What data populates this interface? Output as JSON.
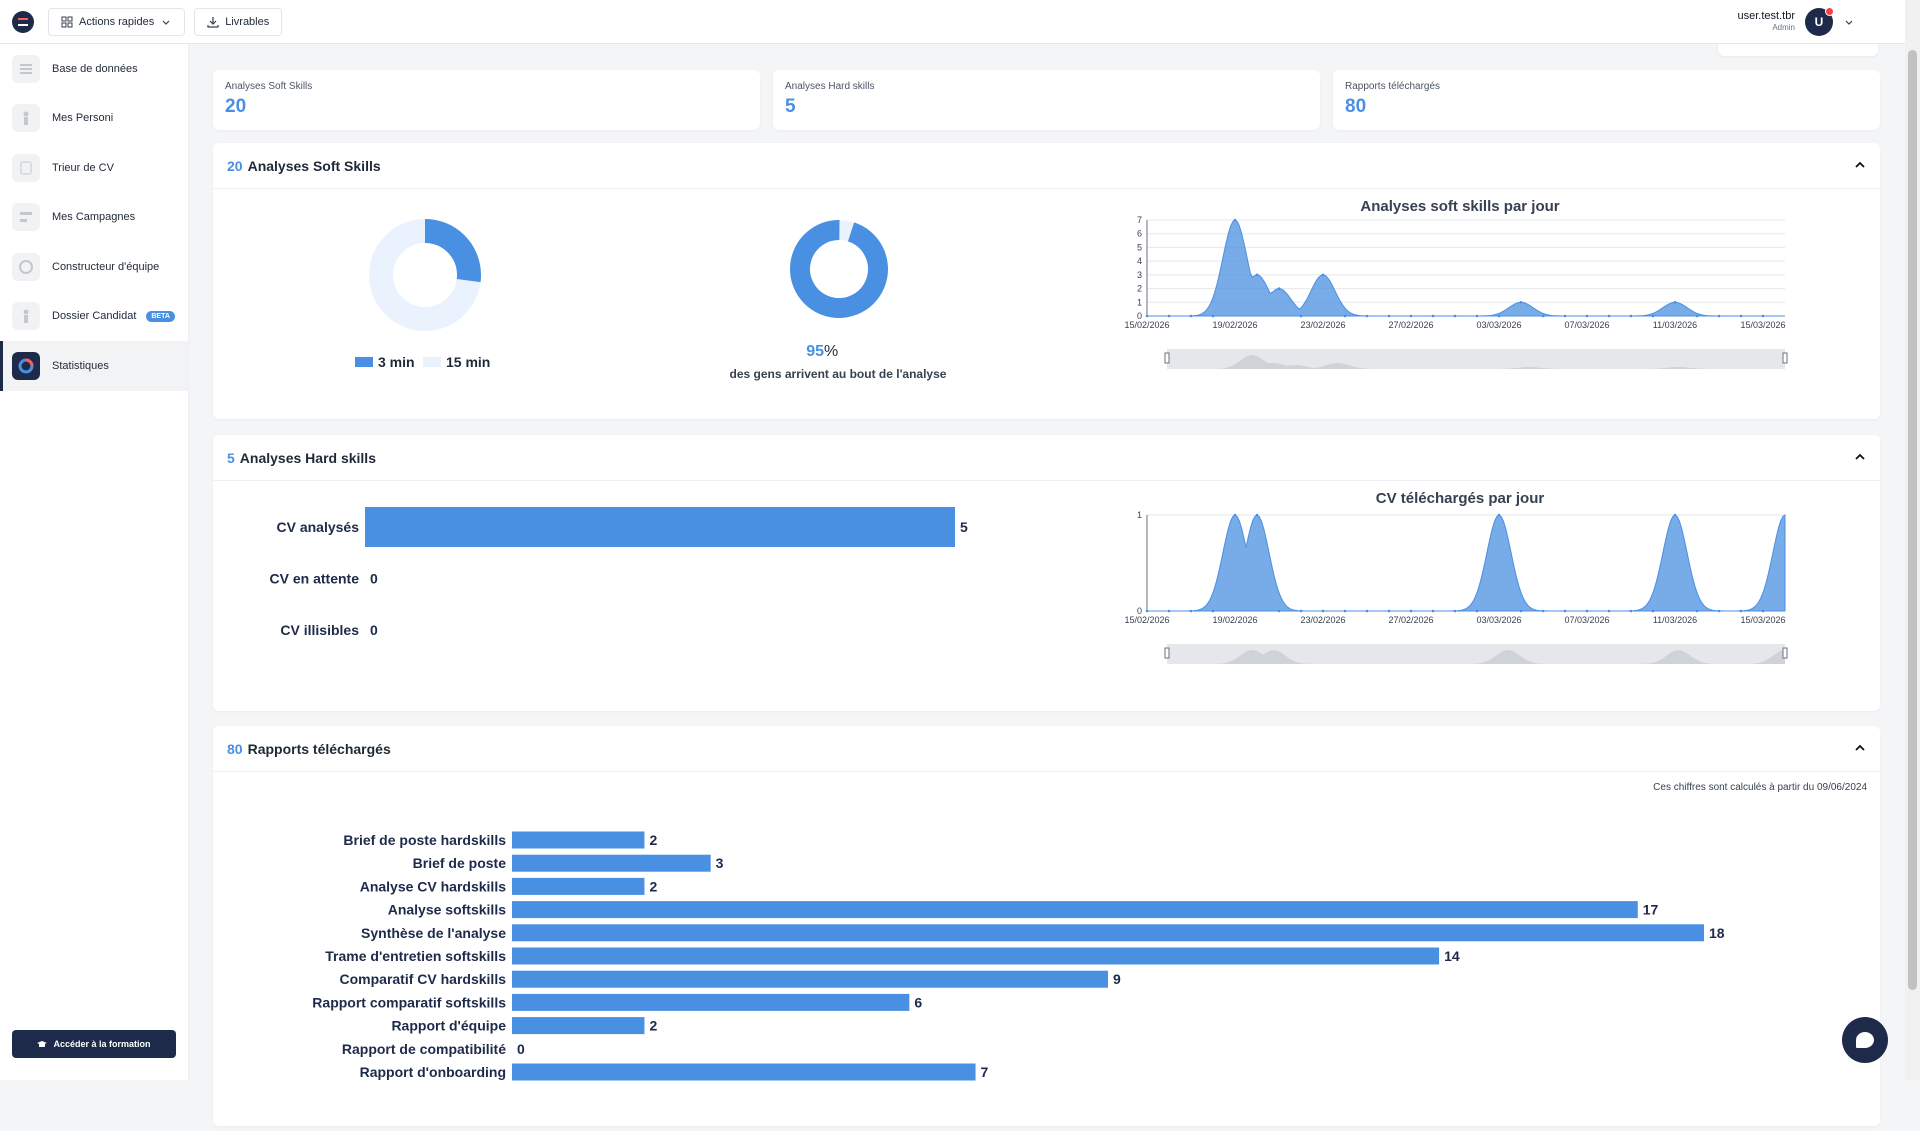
{
  "topbar": {
    "quick_actions": "Actions rapides",
    "deliverables": "Livrables",
    "user_name": "user.test.tbr",
    "user_role": "Admin",
    "avatar_letter": "U"
  },
  "sidebar": {
    "items": [
      {
        "label": "Base de données",
        "icon": "database-icon"
      },
      {
        "label": "Mes Personi",
        "icon": "person-icon"
      },
      {
        "label": "Trieur de CV",
        "icon": "cv-sorter-icon"
      },
      {
        "label": "Mes Campagnes",
        "icon": "campaign-icon"
      },
      {
        "label": "Constructeur d'équipe",
        "icon": "team-builder-icon"
      },
      {
        "label": "Dossier Candidat",
        "icon": "candidate-file-icon",
        "badge": "BETA"
      },
      {
        "label": "Statistiques",
        "icon": "statistics-icon",
        "active": true
      }
    ],
    "formation_button": "Accéder à la formation"
  },
  "stats": [
    {
      "label": "Analyses Soft Skills",
      "value": "20"
    },
    {
      "label": "Analyses Hard skills",
      "value": "5"
    },
    {
      "label": "Rapports téléchargés",
      "value": "80"
    }
  ],
  "soft": {
    "count": "20",
    "title": "Analyses Soft Skills",
    "donut1": {
      "value_fraction": 0.27,
      "legend_a": "3 min",
      "legend_b": "15 min"
    },
    "donut2": {
      "value_fraction": 0.95,
      "percent": "95",
      "percent_sign": "%",
      "caption": "des gens arrivent au bout de l'analyse"
    },
    "chart_title": "Analyses soft skills par jour"
  },
  "hard": {
    "count": "5",
    "title": "Analyses Hard skills",
    "chart_title": "CV téléchargés par jour"
  },
  "reports": {
    "count": "80",
    "title": "Rapports téléchargés",
    "note": "Ces chiffres sont calculés à partir du 09/06/2024"
  },
  "colors": {
    "accent": "#4a90e2",
    "navy": "#1e2a4a"
  },
  "chart_data": [
    {
      "type": "area",
      "title": "Analyses soft skills par jour",
      "x_ticks": [
        "15/02/2026",
        "19/02/2026",
        "23/02/2026",
        "27/02/2026",
        "03/03/2026",
        "07/03/2026",
        "11/03/2026",
        "15/03/2026"
      ],
      "ylim": [
        0,
        7
      ],
      "y_ticks": [
        0,
        1,
        2,
        3,
        4,
        5,
        6,
        7
      ],
      "peaks": [
        {
          "date": "19/02/2026",
          "value": 7
        },
        {
          "date": "20/02/2026",
          "value": 3
        },
        {
          "date": "21/02/2026",
          "value": 2
        },
        {
          "date": "23/02/2026",
          "value": 3
        },
        {
          "date": "04/03/2026",
          "value": 1
        },
        {
          "date": "11/03/2026",
          "value": 1
        }
      ]
    },
    {
      "type": "bar",
      "orientation": "horizontal",
      "categories": [
        "CV analysés",
        "CV en attente",
        "CV illisibles"
      ],
      "values": [
        5,
        0,
        0
      ],
      "xlim": [
        0,
        5
      ]
    },
    {
      "type": "area",
      "title": "CV téléchargés par jour",
      "x_ticks": [
        "15/02/2026",
        "19/02/2026",
        "23/02/2026",
        "27/02/2026",
        "03/03/2026",
        "07/03/2026",
        "11/03/2026",
        "15/03/2026"
      ],
      "ylim": [
        0,
        1
      ],
      "y_ticks": [
        0,
        1
      ],
      "peaks": [
        {
          "date": "19/02/2026",
          "value": 1
        },
        {
          "date": "20/02/2026",
          "value": 1
        },
        {
          "date": "03/03/2026",
          "value": 1
        },
        {
          "date": "11/03/2026",
          "value": 1
        },
        {
          "date": "16/03/2026",
          "value": 1
        }
      ]
    },
    {
      "type": "bar",
      "orientation": "horizontal",
      "categories": [
        "Brief de poste hardskills",
        "Brief de poste",
        "Analyse CV hardskills",
        "Analyse softskills",
        "Synthèse de l'analyse",
        "Trame d'entretien softskills",
        "Comparatif CV hardskills",
        "Rapport comparatif softskills",
        "Rapport d'équipe",
        "Rapport de compatibilité",
        "Rapport d'onboarding"
      ],
      "values": [
        2,
        3,
        2,
        17,
        18,
        14,
        9,
        6,
        2,
        0,
        7
      ],
      "xlim": [
        0,
        18
      ]
    }
  ]
}
